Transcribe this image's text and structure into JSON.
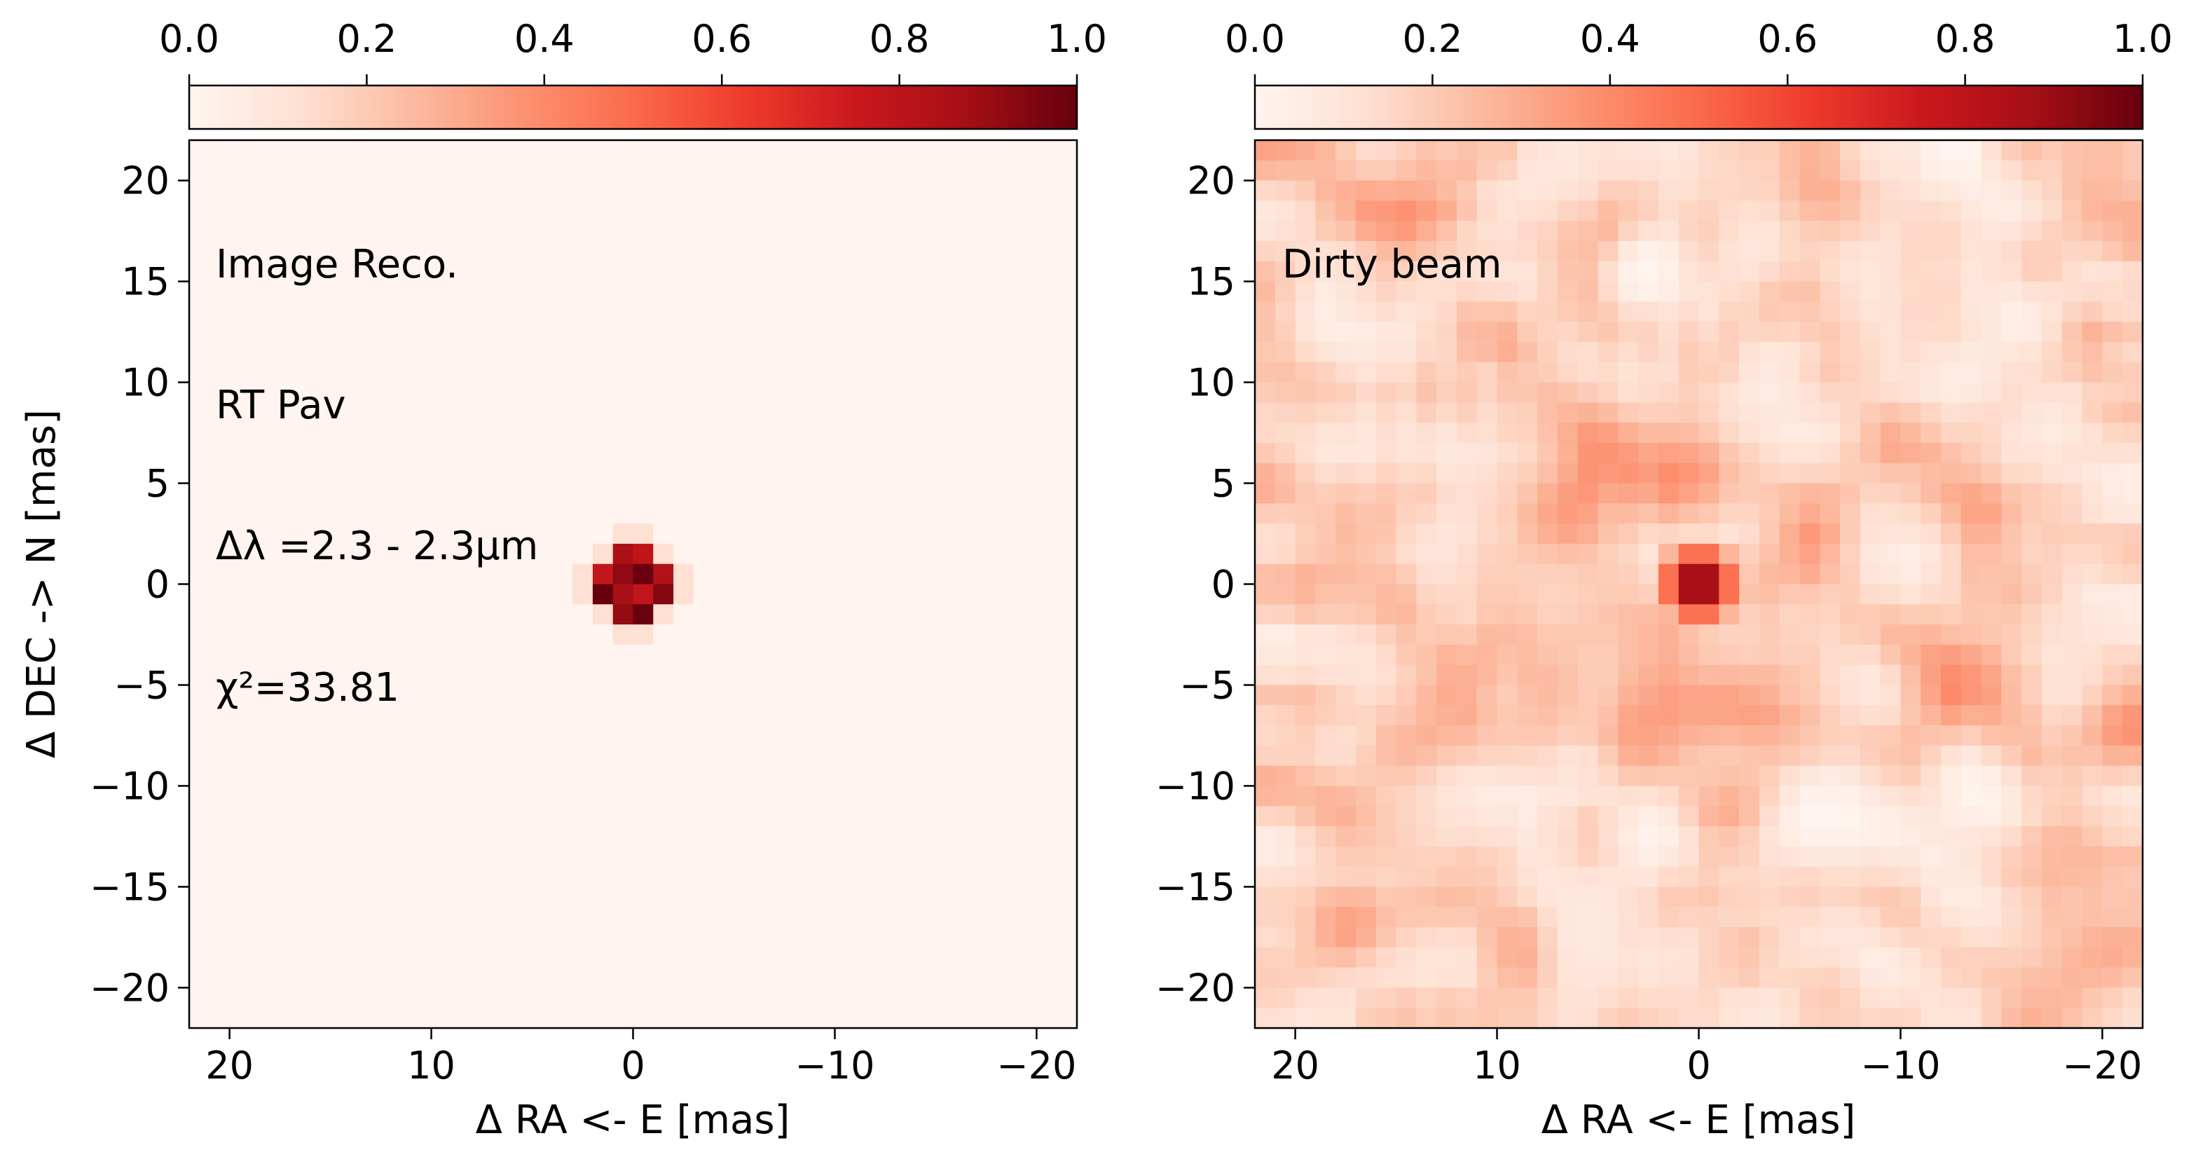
{
  "colormap": {
    "name": "Reds",
    "stops": [
      "#fff5f0",
      "#fee0d2",
      "#fcbba1",
      "#fc9272",
      "#fb6a4a",
      "#ef3b2c",
      "#cb181d",
      "#a50f15",
      "#67000d"
    ]
  },
  "chart_data": [
    {
      "type": "heatmap",
      "panel": "left",
      "xlabel": "Δ RA <- E [mas]",
      "ylabel": "Δ DEC -> N [mas]",
      "xlim": [
        22,
        -22
      ],
      "ylim": [
        -22,
        22
      ],
      "x_ticks": [
        20,
        10,
        0,
        -10,
        -20
      ],
      "y_ticks": [
        20,
        15,
        10,
        5,
        0,
        -5,
        -10,
        -15,
        -20
      ],
      "x_tick_labels": [
        "20",
        "10",
        "0",
        "−10",
        "−20"
      ],
      "y_tick_labels": [
        "20",
        "15",
        "10",
        "5",
        "0",
        "−5",
        "−10",
        "−15",
        "−20"
      ],
      "colorbar": {
        "range": [
          0,
          1
        ],
        "ticks": [
          0,
          0.2,
          0.4,
          0.6,
          0.8,
          1.0
        ],
        "tick_labels": [
          "0.0",
          "0.2",
          "0.4",
          "0.6",
          "0.8",
          "1.0"
        ]
      },
      "annotations": [
        "Image Reco.",
        "RT Pav",
        "Δλ =2.3 - 2.3μm",
        "χ²=33.81"
      ],
      "source": {
        "kind": "point",
        "x": 0,
        "y": 0,
        "peak": 1.0,
        "radius_mas": 1.8
      }
    },
    {
      "type": "heatmap",
      "panel": "right",
      "xlabel": "Δ RA <- E [mas]",
      "ylabel": "",
      "xlim": [
        22,
        -22
      ],
      "ylim": [
        -22,
        22
      ],
      "x_ticks": [
        20,
        10,
        0,
        -10,
        -20
      ],
      "y_ticks": [
        20,
        15,
        10,
        5,
        0,
        -5,
        -10,
        -15,
        -20
      ],
      "x_tick_labels": [
        "20",
        "10",
        "0",
        "−10",
        "−20"
      ],
      "y_tick_labels": [
        "20",
        "15",
        "10",
        "5",
        "0",
        "−5",
        "−10",
        "−15",
        "−20"
      ],
      "colorbar": {
        "range": [
          0,
          1
        ],
        "ticks": [
          0,
          0.2,
          0.4,
          0.6,
          0.8,
          1.0
        ],
        "tick_labels": [
          "0.0",
          "0.2",
          "0.4",
          "0.6",
          "0.8",
          "1.0"
        ]
      },
      "annotations": [
        "Dirty beam"
      ],
      "source": {
        "kind": "beam",
        "x": 0,
        "y": 0,
        "peak": 1.0,
        "sidelobe_level": 0.4
      }
    }
  ]
}
